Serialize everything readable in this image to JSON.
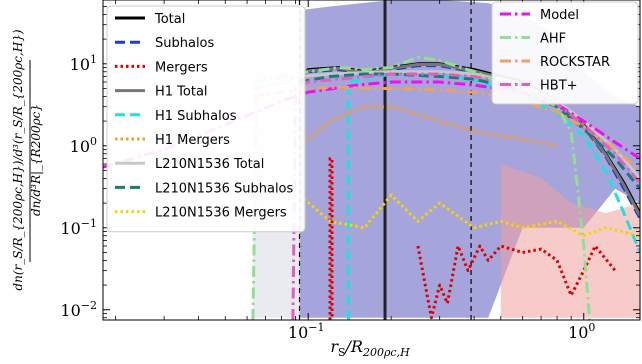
{
  "chart_data": {
    "type": "line",
    "x_scale": "log",
    "y_scale": "log",
    "xlim": [
      0.018,
      1.6
    ],
    "ylim": [
      0.0075,
      60
    ],
    "xlabel": "r_S/R_{200ρc,H}",
    "ylabel_lines": [
      "dn(r_S/R_{200ρc,H})/d³(r_S/R_{200ρc,H})",
      "dn/d³R|_{R200ρc}"
    ],
    "x_ticks": [
      {
        "value": 0.1,
        "base": "10",
        "exp": "−1"
      },
      {
        "value": 1,
        "base": "10",
        "exp": "0"
      }
    ],
    "y_ticks": [
      {
        "value": 0.01,
        "base": "10",
        "exp": "−2"
      },
      {
        "value": 0.1,
        "base": "10",
        "exp": "−1"
      },
      {
        "value": 1,
        "base": "10",
        "exp": "0"
      },
      {
        "value": 10,
        "base": "10",
        "exp": "1"
      }
    ],
    "vertical_lines": [
      {
        "x": 0.093,
        "style": "dashed",
        "color": "#000000"
      },
      {
        "x": 0.19,
        "style": "solid",
        "color": "#222222"
      },
      {
        "x": 0.39,
        "style": "dashed",
        "color": "#000000"
      }
    ],
    "bands": [
      {
        "color": "#5b5bbf",
        "opacity": 0.55,
        "x": [
          0.093,
          0.12,
          0.2,
          0.3,
          0.45,
          0.6,
          0.8,
          1.0,
          1.3,
          1.6
        ],
        "upper": [
          45,
          50,
          60,
          60,
          55,
          40,
          22,
          8,
          4,
          3
        ],
        "lower": [
          0.008,
          0.008,
          0.008,
          0.008,
          0.008,
          0.1,
          0.1,
          0.1,
          0.3,
          0.2
        ]
      },
      {
        "color": "#e8e8f0",
        "opacity": 0.9,
        "x": [
          0.063,
          0.08,
          0.093
        ],
        "upper": [
          30,
          35,
          40
        ],
        "lower": [
          0.008,
          0.008,
          0.008
        ]
      },
      {
        "color": "#f2a0a0",
        "opacity": 0.55,
        "x": [
          0.5,
          0.7,
          0.9,
          1.2,
          1.6
        ],
        "upper": [
          0.6,
          0.4,
          0.2,
          0.15,
          0.2
        ],
        "lower": [
          0.008,
          0.008,
          0.008,
          0.008,
          0.008
        ]
      }
    ],
    "series": [
      {
        "name": "Total",
        "color": "#000000",
        "style": "solid",
        "width": 3,
        "x": [
          0.093,
          0.1,
          0.13,
          0.16,
          0.2,
          0.25,
          0.3,
          0.4,
          0.5,
          0.6,
          0.8,
          1.0,
          1.2,
          1.4,
          1.6
        ],
        "y": [
          6,
          8.5,
          9,
          8,
          9,
          10,
          10,
          8.5,
          7,
          6,
          3.5,
          1.8,
          0.8,
          0.35,
          0.15
        ]
      },
      {
        "name": "Subhalos",
        "color": "#1a3fcc",
        "style": "dashed",
        "width": 3,
        "x": [
          0.093,
          0.1,
          0.13,
          0.16,
          0.2,
          0.25,
          0.3,
          0.4,
          0.5,
          0.6,
          0.8,
          1.0,
          1.2,
          1.4,
          1.6
        ],
        "y": [
          5.5,
          8,
          8.5,
          7.5,
          8.5,
          9.5,
          9.5,
          8,
          6.5,
          5.5,
          3.2,
          1.7,
          0.75,
          0.3,
          0.13
        ]
      },
      {
        "name": "Mergers",
        "color": "#dd0000",
        "style": "dotted",
        "width": 3,
        "x": [
          0.12,
          0.12,
          0.122,
          0.122
        ],
        "y": [
          0.0075,
          0.7,
          0.7,
          0.0075
        ]
      },
      {
        "name": "Mergers",
        "color": "#dd0000",
        "style": "dotted",
        "width": 3,
        "x": [
          0.25,
          0.28,
          0.3,
          0.32,
          0.35,
          0.38,
          0.42,
          0.45,
          0.5,
          0.6,
          0.7,
          0.8,
          0.9,
          1.0,
          1.1,
          1.3
        ],
        "y": [
          0.06,
          0.008,
          0.02,
          0.012,
          0.06,
          0.03,
          0.06,
          0.04,
          0.06,
          0.05,
          0.055,
          0.04,
          0.015,
          0.03,
          0.06,
          0.03
        ]
      },
      {
        "name": "H1 Total",
        "color": "#777777",
        "style": "solid",
        "width": 3,
        "x": [
          0.093,
          0.1,
          0.13,
          0.16,
          0.2,
          0.25,
          0.3,
          0.4,
          0.5,
          0.6,
          0.8,
          1.0,
          1.2,
          1.4,
          1.6
        ],
        "y": [
          5.8,
          8.2,
          8.8,
          7.8,
          8.8,
          9.8,
          9.8,
          8.2,
          6.8,
          5.8,
          3.4,
          1.75,
          0.78,
          0.33,
          0.14
        ]
      },
      {
        "name": "H1 Subhalos",
        "color": "#22e0e0",
        "style": "dashed",
        "width": 3,
        "x": [
          0.14,
          0.14,
          0.16,
          0.2,
          0.25,
          0.3,
          0.4,
          0.5,
          0.6,
          0.8,
          1.0,
          1.2,
          1.4,
          1.6
        ],
        "y": [
          0.0075,
          6,
          6.5,
          7.5,
          8,
          7.5,
          6.5,
          5,
          4,
          2.5,
          1.3,
          0.5,
          0.15,
          0.05
        ]
      },
      {
        "name": "H1 Mergers",
        "color": "#f29b2f",
        "style": "dotted",
        "width": 3,
        "x": [
          0.093,
          0.12,
          0.16,
          0.2,
          0.3,
          0.4,
          0.6,
          0.8
        ],
        "y": [
          1,
          2,
          3,
          3,
          2,
          1.5,
          1.2,
          1
        ]
      },
      {
        "name": "L210N1536 Total",
        "color": "#c8c8c8",
        "style": "solid",
        "width": 3,
        "x": [
          0.063,
          0.08,
          0.093,
          0.12,
          0.16,
          0.2,
          0.3,
          0.4,
          0.5,
          0.6,
          0.8,
          1.0,
          1.3,
          1.6
        ],
        "y": [
          5,
          6,
          7,
          7.5,
          7.8,
          8,
          8,
          7.5,
          6.5,
          5.5,
          3.5,
          2,
          0.9,
          0.4
        ]
      },
      {
        "name": "L210N1536 Subhalos",
        "color": "#1a7a74",
        "style": "dashed",
        "width": 3,
        "x": [
          0.093,
          0.12,
          0.16,
          0.2,
          0.3,
          0.4,
          0.5,
          0.6,
          0.8,
          1.0,
          1.3,
          1.6
        ],
        "y": [
          6,
          7,
          7.5,
          7.5,
          7,
          6.5,
          5.5,
          4.5,
          3,
          1.6,
          0.7,
          0.3
        ]
      },
      {
        "name": "L210N1536 Mergers",
        "color": "#f5d400",
        "style": "dotted",
        "width": 3,
        "x": [
          0.093,
          0.12,
          0.16,
          0.2,
          0.25,
          0.3,
          0.4,
          0.5,
          0.6,
          0.8,
          1.0,
          1.2,
          1.6
        ],
        "y": [
          0.25,
          0.12,
          0.1,
          0.25,
          0.12,
          0.2,
          0.1,
          0.12,
          0.1,
          0.12,
          0.08,
          0.1,
          0.08
        ]
      },
      {
        "name": "Model",
        "color": "#ee10ee",
        "style": "dashdot",
        "width": 3,
        "x": [
          0.018,
          0.03,
          0.05,
          0.08,
          0.1,
          0.15,
          0.2,
          0.3,
          0.4,
          0.6,
          0.8,
          1.0,
          1.3,
          1.6
        ],
        "y": [
          0.55,
          0.9,
          1.8,
          3.5,
          4.5,
          5.5,
          6,
          6,
          5.5,
          4.5,
          3.2,
          2,
          1.1,
          0.7
        ]
      },
      {
        "name": "AHF",
        "color": "#8fe08f",
        "style": "dashdot",
        "width": 3,
        "x": [
          0.063,
          0.065,
          0.08,
          0.1,
          0.13,
          0.16,
          0.2,
          0.25,
          0.3,
          0.4,
          0.5,
          0.6,
          0.8,
          0.9,
          0.95,
          1.0,
          1.05
        ],
        "y": [
          0.0075,
          6,
          7,
          8,
          9,
          8.5,
          9,
          12,
          11,
          8,
          6,
          5,
          3,
          1.5,
          0.3,
          0.06,
          0.0075
        ]
      },
      {
        "name": "ROCKSTAR",
        "color": "#f0a060",
        "style": "dashdot",
        "width": 3,
        "x": [
          0.063,
          0.08,
          0.1,
          0.13,
          0.16,
          0.2,
          0.3,
          0.4,
          0.5,
          0.6,
          0.8,
          1.0,
          1.3,
          1.6
        ],
        "y": [
          4,
          4.5,
          5,
          5.2,
          5,
          5,
          4.8,
          4.5,
          4,
          3.5,
          2.6,
          1.7,
          0.9,
          0.5
        ]
      },
      {
        "name": "HBT+",
        "color": "#e060c0",
        "style": "dashdot",
        "width": 3,
        "x": [
          0.088,
          0.09,
          0.1,
          0.13,
          0.16,
          0.2,
          0.3,
          0.4,
          0.5,
          0.6,
          0.8,
          1.0,
          1.3,
          1.6
        ],
        "y": [
          0.0075,
          5,
          6,
          6.5,
          7,
          7.5,
          7.5,
          7,
          6,
          5,
          3.2,
          1.8,
          0.8,
          0.35
        ]
      }
    ],
    "legend_left": [
      {
        "label": "Total",
        "color": "#000000",
        "style": "solid"
      },
      {
        "label": "Subhalos",
        "color": "#1a3fcc",
        "style": "dashed"
      },
      {
        "label": "Mergers",
        "color": "#dd0000",
        "style": "dotted"
      },
      {
        "label": "H1 Total",
        "color": "#777777",
        "style": "solid"
      },
      {
        "label": "H1 Subhalos",
        "color": "#22e0e0",
        "style": "dashed"
      },
      {
        "label": "H1 Mergers",
        "color": "#f29b2f",
        "style": "dotted"
      },
      {
        "label": "L210N1536 Total",
        "color": "#c8c8c8",
        "style": "solid"
      },
      {
        "label": "L210N1536 Subhalos",
        "color": "#1a7a74",
        "style": "dashed"
      },
      {
        "label": "L210N1536 Mergers",
        "color": "#f5d400",
        "style": "dotted"
      }
    ],
    "legend_right": [
      {
        "label": "Model",
        "color": "#ee10ee",
        "style": "dashdot"
      },
      {
        "label": "AHF",
        "color": "#8fe08f",
        "style": "dashdot"
      },
      {
        "label": "ROCKSTAR",
        "color": "#f0a060",
        "style": "dashdot"
      },
      {
        "label": "HBT+",
        "color": "#e060c0",
        "style": "dashdot"
      }
    ],
    "legend_placement": [
      "upper-left",
      "upper-right"
    ],
    "grid": false
  }
}
